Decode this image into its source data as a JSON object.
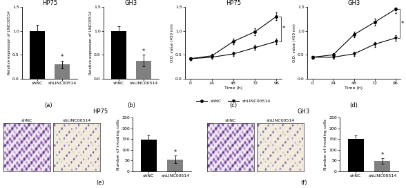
{
  "chart_data": [
    {
      "panel": "(a)",
      "type": "bar",
      "title": "HP75",
      "y_label": "Relative expression of LINC00514",
      "categories": [
        "shNC",
        "shLINC00514"
      ],
      "values": [
        1.0,
        0.3
      ],
      "errors": [
        0.12,
        0.08
      ],
      "colors": [
        "#000000",
        "#808080"
      ],
      "ylim": [
        0,
        1.5
      ],
      "yticks": [
        {
          "value": 0,
          "label": "0.0"
        },
        {
          "value": 0.5,
          "label": "0.5"
        },
        {
          "value": 1,
          "label": "1.0"
        },
        {
          "value": 1.5,
          "label": "1.5"
        }
      ],
      "annotations": [
        {
          "text": "*",
          "category": "shLINC00514"
        }
      ]
    },
    {
      "panel": "(b)",
      "type": "bar",
      "title": "GH3",
      "y_label": "Relative expression of LINC00514",
      "categories": [
        "shNC",
        "shLINC00514"
      ],
      "values": [
        1.0,
        0.38
      ],
      "errors": [
        0.1,
        0.12
      ],
      "colors": [
        "#000000",
        "#808080"
      ],
      "ylim": [
        0,
        1.5
      ],
      "yticks": [
        {
          "value": 0,
          "label": "0.0"
        },
        {
          "value": 0.5,
          "label": "0.5"
        },
        {
          "value": 1,
          "label": "1.0"
        },
        {
          "value": 1.5,
          "label": "1.5"
        }
      ],
      "annotations": [
        {
          "text": "*",
          "category": "shLINC00514"
        }
      ]
    },
    {
      "panel": "(c)",
      "type": "line",
      "title": "HP75",
      "x_label": "Time (h)",
      "y_label": "O.D. value (450 nm)",
      "x": [
        0,
        24,
        48,
        72,
        96
      ],
      "series": [
        {
          "name": "shNC",
          "color": "#000000",
          "marker": "circle",
          "values": [
            0.42,
            0.48,
            0.78,
            0.98,
            1.3
          ],
          "errors": [
            0.03,
            0.04,
            0.06,
            0.07,
            0.08
          ]
        },
        {
          "name": "shLINC00514",
          "color": "#000000",
          "marker": "triangle",
          "values": [
            0.42,
            0.45,
            0.52,
            0.65,
            0.78
          ],
          "errors": [
            0.03,
            0.03,
            0.04,
            0.05,
            0.06
          ]
        }
      ],
      "xlim": [
        -6,
        102
      ],
      "xticks": [
        0,
        24,
        48,
        72,
        96
      ],
      "ylim": [
        0,
        1.5
      ],
      "yticks": [
        {
          "value": 0,
          "label": "0.0"
        },
        {
          "value": 0.5,
          "label": "0.5"
        },
        {
          "value": 1,
          "label": "1.0"
        },
        {
          "value": 1.5,
          "label": "1.5"
        }
      ],
      "legend": "bottom",
      "annotations": [
        {
          "text": "*"
        }
      ]
    },
    {
      "panel": "(d)",
      "type": "line",
      "title": "GH3",
      "x_label": "Time (h)",
      "y_label": "O.D. value (450 nm)",
      "x": [
        0,
        24,
        48,
        72,
        96
      ],
      "series": [
        {
          "color": "#000000",
          "marker": "circle",
          "values": [
            0.45,
            0.5,
            0.92,
            1.18,
            1.45
          ],
          "errors": [
            0.03,
            0.04,
            0.06,
            0.07,
            0.08
          ]
        },
        {
          "color": "#000000",
          "marker": "triangle",
          "values": [
            0.45,
            0.45,
            0.52,
            0.72,
            0.85
          ],
          "errors": [
            0.03,
            0.03,
            0.04,
            0.05,
            0.06
          ]
        }
      ],
      "xlim": [
        -6,
        102
      ],
      "xticks": [
        0,
        24,
        48,
        72,
        96
      ],
      "ylim": [
        0,
        1.5
      ],
      "yticks": [
        {
          "value": 0,
          "label": "0.0"
        },
        {
          "value": 0.5,
          "label": "0.5"
        },
        {
          "value": 1,
          "label": "1.0"
        },
        {
          "value": 1.5,
          "label": "1.5"
        }
      ],
      "annotations": [
        {
          "text": "*"
        }
      ]
    },
    {
      "panel": "(e)",
      "type": "bar",
      "title": "HP75",
      "image_labels": [
        "shNC",
        "shLINC00514"
      ],
      "y_label": "Number of invading cells",
      "categories": [
        "shNC",
        "shLINC00514"
      ],
      "values": [
        148,
        55
      ],
      "errors": [
        22,
        18
      ],
      "colors": [
        "#000000",
        "#808080"
      ],
      "ylim": [
        0,
        250
      ],
      "yticks": [
        0,
        50,
        100,
        150,
        200,
        250
      ],
      "annotations": [
        {
          "text": "*",
          "category": "shLINC00514"
        }
      ]
    },
    {
      "panel": "(f)",
      "type": "bar",
      "title": "GH3",
      "image_labels": [
        "shNC",
        "shLINC00514"
      ],
      "y_label": "Number of invading cells",
      "categories": [
        "shNC",
        "shLINC00514"
      ],
      "values": [
        152,
        48
      ],
      "errors": [
        15,
        12
      ],
      "colors": [
        "#000000",
        "#808080"
      ],
      "ylim": [
        0,
        250
      ],
      "yticks": [
        0,
        50,
        100,
        150,
        200,
        250
      ],
      "annotations": [
        {
          "text": "*",
          "category": "shLINC00514"
        }
      ]
    }
  ]
}
